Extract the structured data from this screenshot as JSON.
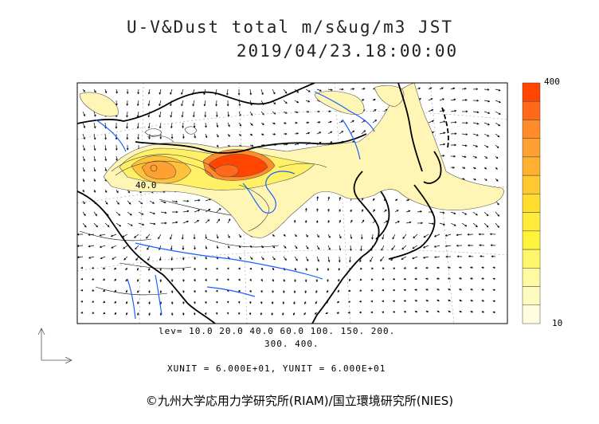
{
  "title": {
    "line1": "U-V&Dust total m/s&ug/m3 JST",
    "line2": "2019/04/23.18:00:00"
  },
  "contour_label": "40.0",
  "levels": {
    "line1": "lev= 10.0 20.0 40.0 60.0 100. 150. 200.",
    "line2": "300. 400."
  },
  "units": "XUNIT = 6.000E+01, YUNIT = 6.000E+01",
  "colorbar": {
    "max_label": "400",
    "min_label": "10",
    "colors": [
      "#ff4500",
      "#ff6a1a",
      "#ff8c29",
      "#ffa033",
      "#ffb030",
      "#ffc830",
      "#ffde30",
      "#ffeb3b",
      "#fff23a",
      "#fff66b",
      "#fff9a0",
      "#fffbbf",
      "#fffde0"
    ]
  },
  "colors": {
    "dust_light": "#fff6b5",
    "dust_mid": "#ffd95a",
    "dust_high": "#ff8c29",
    "dust_peak": "#ff4500",
    "rivers": "#1a5fff"
  },
  "copyright": "©九州大学応用力学研究所(RIAM)/国立環境研究所(NIES)"
}
